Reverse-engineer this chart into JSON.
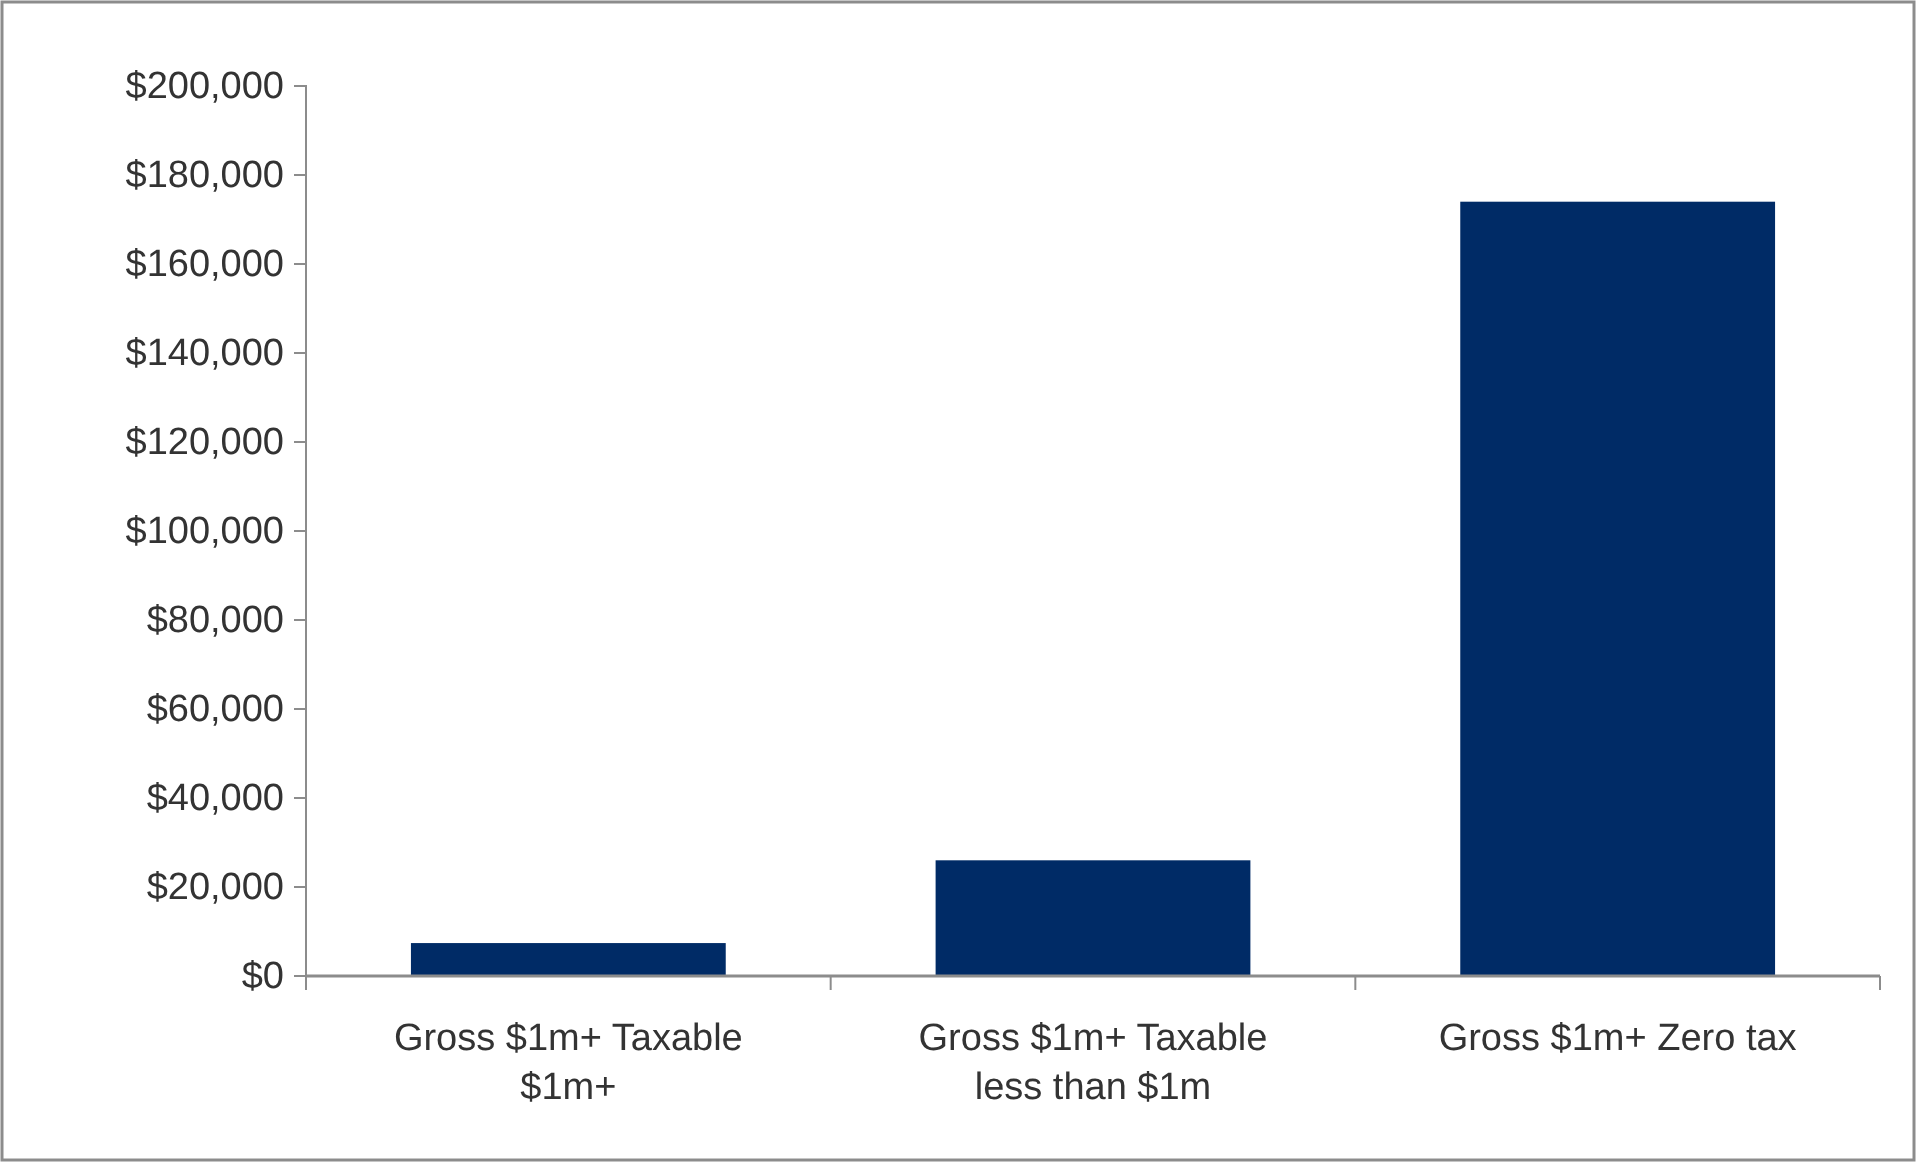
{
  "chart_data": {
    "type": "bar",
    "categories": [
      "Gross $1m+ Taxable $1m+",
      "Gross $1m+ Taxable less than $1m",
      "Gross $1m+ Zero tax"
    ],
    "values": [
      7400,
      26000,
      174000
    ],
    "color": "#002b66",
    "ylim": [
      0,
      200000
    ],
    "yticks": [
      {
        "value": 0,
        "label": "$0"
      },
      {
        "value": 20000,
        "label": "$20,000"
      },
      {
        "value": 40000,
        "label": "$40,000"
      },
      {
        "value": 60000,
        "label": "$60,000"
      },
      {
        "value": 80000,
        "label": "$80,000"
      },
      {
        "value": 100000,
        "label": "$100,000"
      },
      {
        "value": 120000,
        "label": "$120,000"
      },
      {
        "value": 140000,
        "label": "$140,000"
      },
      {
        "value": 160000,
        "label": "$160,000"
      },
      {
        "value": 180000,
        "label": "$180,000"
      },
      {
        "value": 200000,
        "label": "$200,000"
      }
    ],
    "grid": false
  }
}
